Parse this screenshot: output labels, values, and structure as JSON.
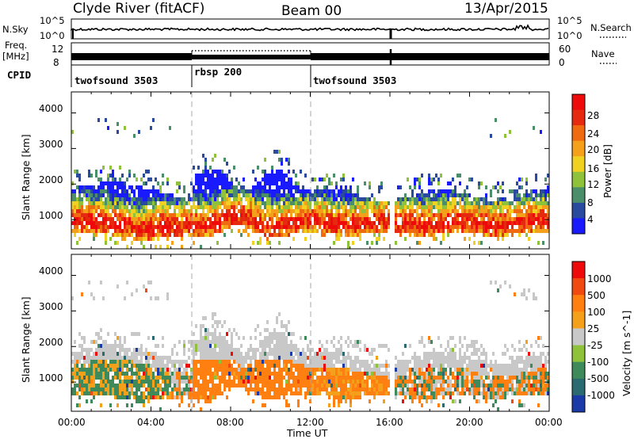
{
  "header": {
    "station": "Clyde River (fitACF)",
    "beam": "Beam 00",
    "date": "13/Apr/2015"
  },
  "top_panels": {
    "nsky_label": "N.Sky",
    "nsearch_label": "N.Search",
    "nsky_ticks": [
      "10^5",
      "10^0"
    ],
    "nsearch_ticks": [
      "10^5",
      "10^0"
    ],
    "freq_label_1": "Freq.",
    "freq_label_2": "[MHz]",
    "freq_ticks": [
      "12",
      "8"
    ],
    "nave_label": "Nave",
    "nave_ticks": [
      "60",
      "0"
    ],
    "cpid_label": "CPID"
  },
  "cpid_segments": [
    {
      "label": "twofsound 3503",
      "start_hour": 0,
      "end_hour": 6
    },
    {
      "label": "rbsp 200",
      "start_hour": 6,
      "end_hour": 12
    },
    {
      "label": "twofsound 3503",
      "start_hour": 12,
      "end_hour": 24
    }
  ],
  "x_axis": {
    "label": "Time UT",
    "ticks": [
      "00:00",
      "04:00",
      "08:00",
      "12:00",
      "16:00",
      "20:00",
      "00:00"
    ],
    "range_hours": [
      0,
      24
    ]
  },
  "y_axis": {
    "label": "Slant Range [km]",
    "ticks": [
      "4000",
      "3000",
      "2000",
      "1000"
    ],
    "range_km": [
      180,
      4590
    ]
  },
  "power_scale": {
    "label": "Power [dB]",
    "ticks": [
      "28",
      "24",
      "20",
      "16",
      "12",
      "8",
      "4"
    ],
    "colors": [
      "#1a1aff",
      "#2a4aa0",
      "#4a8f6a",
      "#8fc23a",
      "#f0d020",
      "#f5a01a",
      "#f06a10",
      "#e62a10",
      "#ee0a0a"
    ]
  },
  "velocity_scale": {
    "label": "Velocity [m s^-1]",
    "ticks": [
      "1000",
      "500",
      "100",
      "25",
      "-25",
      "-100",
      "-500",
      "-1000"
    ],
    "colors": [
      "#1a3aa8",
      "#2a6a70",
      "#3f8a5a",
      "#8fc23a",
      "#c8c8c8",
      "#f5a01a",
      "#ff8010",
      "#f04a10",
      "#ee0a0a"
    ]
  },
  "chart_data": {
    "type": "heatmap",
    "title": "Clyde River (fitACF)",
    "xlabel": "Time UT",
    "ylabel": "Slant Range [km]",
    "xlim_hours": [
      0,
      24
    ],
    "ylim_km": [
      180,
      4590
    ],
    "panels": [
      "Power [dB]",
      "Velocity [m s^-1]"
    ]
  }
}
